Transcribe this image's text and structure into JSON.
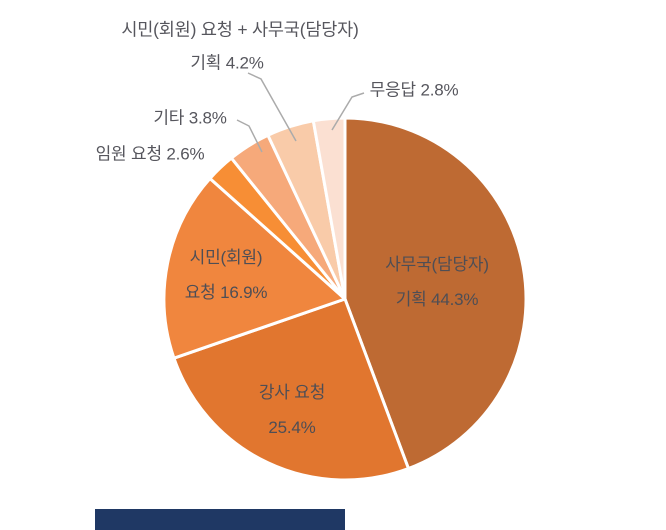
{
  "labels": {
    "title": "시민(회원) 요청 + 사무국(담당자)",
    "callout_gihoek": "기획 4.2%",
    "callout_mueungdap": "무응답 2.8%",
    "callout_gita": "기타 3.8%",
    "callout_imwon": "임원 요청 2.6%",
    "samuguk_line1": "사무국(담당자)",
    "samuguk_line2": "기획 44.3%",
    "gangsa_line1": "강사 요청",
    "gangsa_line2": "25.4%",
    "simin_line1": "시민(회원)",
    "simin_line2": "요청 16.9%"
  },
  "colors": {
    "background": "#ffffff",
    "label_text": "#56565d",
    "inside_label_text": "#4e4e55",
    "leader_line": "#ababab",
    "slice_separator": "#ffffff",
    "accent_bar": "#1f3864"
  },
  "chart_data": {
    "type": "pie",
    "title": "시민(회원) 요청 + 사무국(담당자)",
    "unit": "%",
    "direction": "clockwise",
    "start_angle_deg": 0,
    "legend": "none",
    "label_style": "inside for large slices, callouts with leader lines for small slices",
    "slices": [
      {
        "label": "사무국(담당자) 기획",
        "value": 44.3,
        "color": "#be6a33",
        "label_placement": "inside"
      },
      {
        "label": "강사 요청",
        "value": 25.4,
        "color": "#e1762f",
        "label_placement": "inside"
      },
      {
        "label": "시민(회원) 요청",
        "value": 16.9,
        "color": "#f0863e",
        "label_placement": "inside"
      },
      {
        "label": "임원 요청",
        "value": 2.6,
        "color": "#f78e35",
        "label_placement": "outside"
      },
      {
        "label": "기타",
        "value": 3.8,
        "color": "#f6a97a",
        "label_placement": "outside-leader"
      },
      {
        "label": "기획",
        "value": 4.2,
        "color": "#f9cba9",
        "label_placement": "outside-leader"
      },
      {
        "label": "무응답",
        "value": 2.8,
        "color": "#fbe0d2",
        "label_placement": "outside-leader"
      }
    ]
  }
}
